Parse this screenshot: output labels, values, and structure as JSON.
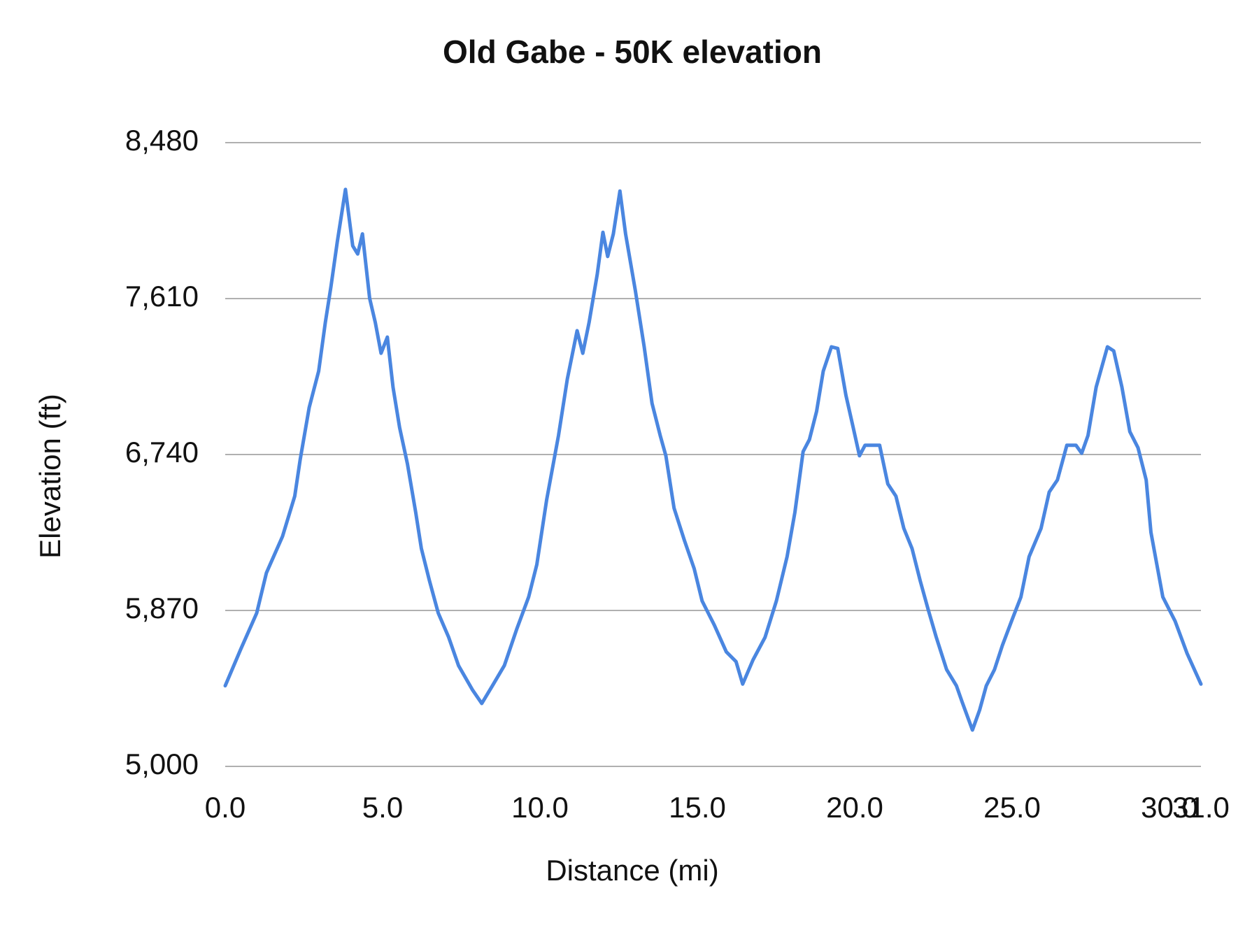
{
  "chart_data": {
    "type": "line",
    "title": "Old Gabe - 50K elevation",
    "x_label": "Distance (mi)",
    "y_label": "Elevation (ft)",
    "x": [
      0,
      0.49,
      1.0,
      1.31,
      1.82,
      2.21,
      2.38,
      2.67,
      2.97,
      3.18,
      3.36,
      3.56,
      3.82,
      4.05,
      4.21,
      4.36,
      4.59,
      4.77,
      4.95,
      5.15,
      5.33,
      5.54,
      5.79,
      6.05,
      6.23,
      6.49,
      6.77,
      7.1,
      7.41,
      7.85,
      8.15,
      8.49,
      8.87,
      9.26,
      9.64,
      9.9,
      10.21,
      10.59,
      10.87,
      11.18,
      11.36,
      11.56,
      11.82,
      12.0,
      12.15,
      12.33,
      12.54,
      12.72,
      13.03,
      13.31,
      13.56,
      13.82,
      14.0,
      14.26,
      14.59,
      14.9,
      15.15,
      15.54,
      15.92,
      16.23,
      16.44,
      16.77,
      17.15,
      17.51,
      17.85,
      18.1,
      18.36,
      18.56,
      18.79,
      19.0,
      19.26,
      19.46,
      19.72,
      19.95,
      20.15,
      20.33,
      20.79,
      21.05,
      21.31,
      21.56,
      21.82,
      22.08,
      22.33,
      22.59,
      22.92,
      23.23,
      23.41,
      23.74,
      23.97,
      24.18,
      24.44,
      24.69,
      25.03,
      25.28,
      25.54,
      25.92,
      26.18,
      26.44,
      26.74,
      27.03,
      27.21,
      27.41,
      27.67,
      28.03,
      28.23,
      28.49,
      28.74,
      29.0,
      29.26,
      29.41,
      29.79,
      30.18,
      30.56,
      31.0
    ],
    "values": [
      5450,
      5653,
      5855,
      6080,
      6283,
      6508,
      6710,
      7003,
      7205,
      7476,
      7678,
      7926,
      8219,
      7904,
      7859,
      7971,
      7611,
      7476,
      7305,
      7395,
      7116,
      6891,
      6688,
      6418,
      6216,
      6036,
      5855,
      5720,
      5563,
      5428,
      5351,
      5450,
      5563,
      5765,
      5945,
      6126,
      6486,
      6846,
      7161,
      7431,
      7305,
      7476,
      7746,
      7980,
      7845,
      7971,
      8210,
      7971,
      7656,
      7341,
      7026,
      6846,
      6733,
      6441,
      6261,
      6103,
      5923,
      5788,
      5639,
      5585,
      5459,
      5594,
      5720,
      5923,
      6170,
      6418,
      6756,
      6823,
      6981,
      7205,
      7341,
      7332,
      7071,
      6891,
      6733,
      6792,
      6792,
      6576,
      6508,
      6328,
      6216,
      6036,
      5878,
      5720,
      5540,
      5450,
      5360,
      5203,
      5315,
      5450,
      5540,
      5675,
      5833,
      5945,
      6170,
      6328,
      6531,
      6598,
      6792,
      6792,
      6747,
      6846,
      7116,
      7341,
      7318,
      7116,
      6868,
      6778,
      6598,
      6306,
      5945,
      5810,
      5630,
      5459
    ],
    "color": "#4a86e0",
    "xlim": [
      0,
      31
    ],
    "ylim": [
      5000,
      8480
    ],
    "xticks": [
      {
        "value": 0,
        "label": "0.0"
      },
      {
        "value": 5,
        "label": "5.0"
      },
      {
        "value": 10,
        "label": "10.0"
      },
      {
        "value": 15,
        "label": "15.0"
      },
      {
        "value": 20,
        "label": "20.0"
      },
      {
        "value": 25,
        "label": "25.0"
      },
      {
        "value": 30,
        "label": "30.0"
      },
      {
        "value": 31,
        "label": "31.0"
      }
    ],
    "yticks": [
      {
        "value": 5000,
        "label": "5,000"
      },
      {
        "value": 5870,
        "label": "5,870"
      },
      {
        "value": 6740,
        "label": "6,740"
      },
      {
        "value": 7610,
        "label": "7,610"
      },
      {
        "value": 8480,
        "label": "8,480"
      }
    ],
    "grid": true
  }
}
